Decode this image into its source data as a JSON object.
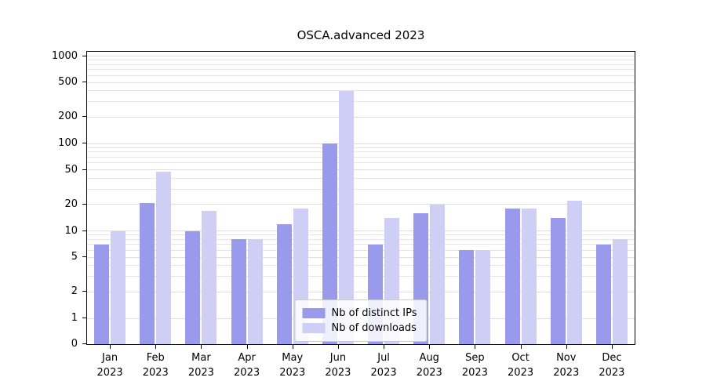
{
  "title": "OSCA.advanced 2023",
  "chart_data": {
    "type": "bar",
    "title": "OSCA.advanced 2023",
    "categories": [
      "Jan 2023",
      "Feb 2023",
      "Mar 2023",
      "Apr 2023",
      "May 2023",
      "Jun 2023",
      "Jul 2023",
      "Aug 2023",
      "Sep 2023",
      "Oct 2023",
      "Nov 2023",
      "Dec 2023"
    ],
    "series": [
      {
        "name": "Nb of distinct IPs",
        "color": "#9a9aec",
        "values": [
          7,
          21,
          10,
          8,
          12,
          100,
          7,
          16,
          6,
          18,
          14,
          7
        ]
      },
      {
        "name": "Nb of downloads",
        "color": "#cfcff6",
        "values": [
          10,
          48,
          17,
          8,
          18,
          400,
          14,
          20,
          6,
          18,
          22,
          8
        ]
      }
    ],
    "yticks": [
      0,
      1,
      2,
      5,
      10,
      20,
      50,
      100,
      200,
      500,
      1000
    ],
    "yscale": "symlog",
    "ylim": [
      0,
      1150
    ],
    "grid": "horizontal minor gridlines on",
    "legend_position": "lower center"
  }
}
